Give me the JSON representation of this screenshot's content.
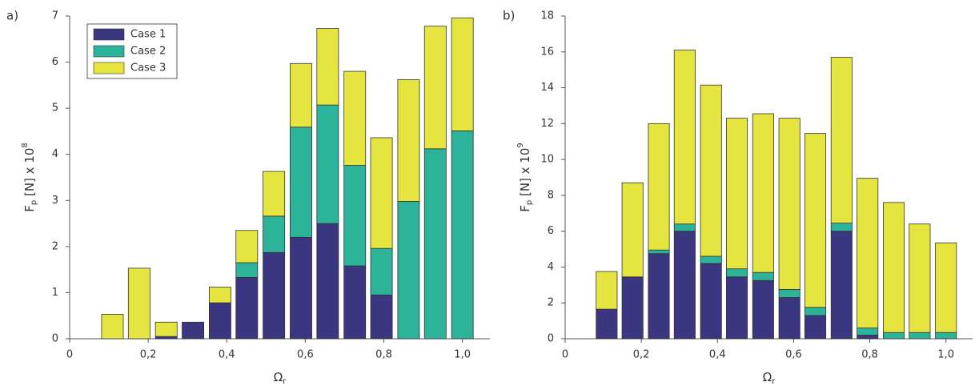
{
  "chart_data": [
    {
      "type": "bar",
      "stacked": true,
      "panel_label": "a)",
      "xlabel": {
        "main": "Ω",
        "sub": "r"
      },
      "ylabel": {
        "main": "F",
        "sub": "p",
        "mid": " [N] x 10",
        "sup": "8"
      },
      "x": [
        0.04,
        0.109,
        0.177,
        0.246,
        0.314,
        0.383,
        0.451,
        0.52,
        0.589,
        0.657,
        0.726,
        0.794,
        0.863,
        0.931,
        1.0
      ],
      "series": [
        {
          "name": "Case 1",
          "color": "#3b3680",
          "values": [
            0,
            0,
            0,
            0.05,
            0.36,
            0.78,
            1.33,
            1.87,
            2.2,
            2.5,
            1.58,
            0.95,
            0,
            0,
            0
          ]
        },
        {
          "name": "Case 2",
          "color": "#2db39a",
          "values": [
            0,
            0,
            0,
            0,
            0,
            0,
            0.32,
            0.79,
            2.39,
            2.57,
            2.18,
            1.01,
            2.98,
            4.12,
            4.51
          ]
        },
        {
          "name": "Case 3",
          "color": "#e6e540",
          "values": [
            0,
            0.53,
            1.53,
            0.31,
            0,
            0.34,
            0.7,
            0.97,
            1.38,
            1.66,
            2.04,
            2.4,
            2.64,
            2.66,
            2.45
          ]
        }
      ],
      "xlim": [
        0,
        1.07
      ],
      "ylim": [
        0,
        7
      ],
      "xticks": [
        0,
        {
          "value": 0.2,
          "label": "0,2"
        },
        {
          "value": 0.4,
          "label": "0,4"
        },
        {
          "value": 0.6,
          "label": "0,6"
        },
        {
          "value": 0.8,
          "label": "0,8"
        },
        {
          "value": 1.0,
          "label": "1,0"
        }
      ],
      "yticks": [
        0,
        1,
        2,
        3,
        4,
        5,
        6,
        7
      ],
      "legend": "upper left"
    },
    {
      "type": "bar",
      "stacked": true,
      "panel_label": "b)",
      "xlabel": {
        "main": "Ω",
        "sub": "r"
      },
      "ylabel": {
        "main": "F",
        "sub": "p",
        "mid": " [N] x 10",
        "sup": "9"
      },
      "x": [
        0.04,
        0.109,
        0.177,
        0.246,
        0.314,
        0.383,
        0.451,
        0.52,
        0.589,
        0.657,
        0.726,
        0.794,
        0.863,
        0.931,
        1.0
      ],
      "series": [
        {
          "name": "Case 1",
          "color": "#3b3680",
          "values": [
            0,
            1.65,
            3.45,
            4.75,
            6.0,
            4.2,
            3.45,
            3.25,
            2.3,
            1.3,
            6.0,
            0.2,
            0,
            0,
            0
          ]
        },
        {
          "name": "Case 2",
          "color": "#2db39a",
          "values": [
            0,
            0,
            0,
            0.2,
            0.4,
            0.4,
            0.45,
            0.45,
            0.45,
            0.45,
            0.45,
            0.4,
            0.35,
            0.35,
            0.35
          ]
        },
        {
          "name": "Case 3",
          "color": "#e6e540",
          "values": [
            0,
            2.1,
            5.25,
            7.05,
            9.7,
            9.55,
            8.4,
            8.85,
            9.55,
            9.7,
            9.25,
            8.35,
            7.25,
            6.05,
            5.0
          ]
        }
      ],
      "xlim": [
        0,
        1.07
      ],
      "ylim": [
        0,
        18
      ],
      "xticks": [
        0,
        {
          "value": 0.2,
          "label": "0,2"
        },
        {
          "value": 0.4,
          "label": "0,4"
        },
        {
          "value": 0.6,
          "label": "0,6"
        },
        {
          "value": 0.8,
          "label": "0,8"
        },
        {
          "value": 1.0,
          "label": "1,0"
        }
      ],
      "yticks": [
        0,
        2,
        4,
        6,
        8,
        10,
        12,
        14,
        16,
        18
      ]
    }
  ]
}
